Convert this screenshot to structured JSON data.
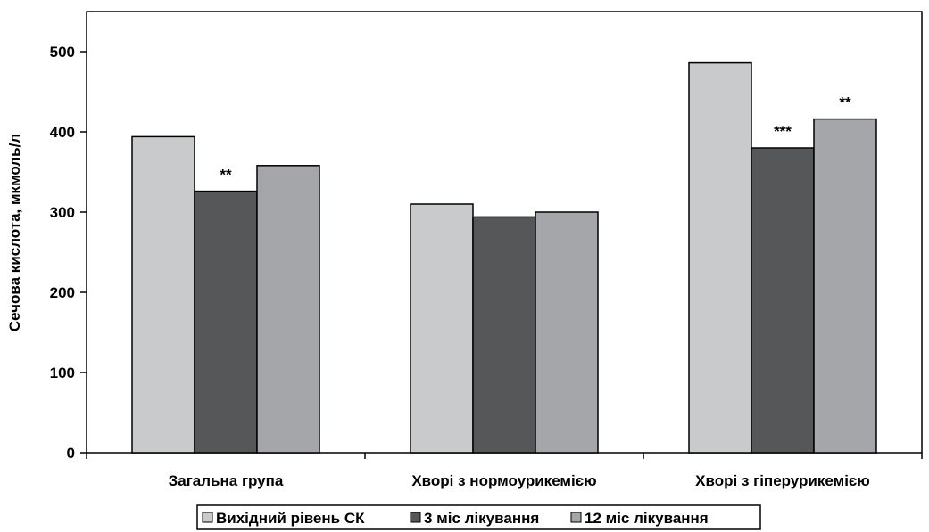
{
  "chart_data": {
    "type": "bar",
    "title": "",
    "xlabel": "",
    "ylabel": "Сечова кислота, мкмоль/л",
    "ylim": [
      0,
      500
    ],
    "yticks": [
      0,
      100,
      200,
      300,
      400,
      500
    ],
    "grid": false,
    "legend_position": "bottom",
    "categories": [
      "Загальна група",
      "Хворі з нормоурикемією",
      "Хворі з гіперурикемією"
    ],
    "series": [
      {
        "name": "Вихідний рівень СК",
        "values": [
          394,
          310,
          486
        ],
        "color": "#c9cacc"
      },
      {
        "name": "3 міс лікування",
        "values": [
          326,
          294,
          380
        ],
        "color": "#565759"
      },
      {
        "name": "12 міс лікування",
        "values": [
          358,
          300,
          416
        ],
        "color": "#a5a6a9"
      }
    ],
    "annotations": [
      {
        "category": 0,
        "series": 1,
        "text": "**"
      },
      {
        "category": 2,
        "series": 1,
        "text": "***"
      },
      {
        "category": 2,
        "series": 2,
        "text": "**"
      }
    ]
  }
}
